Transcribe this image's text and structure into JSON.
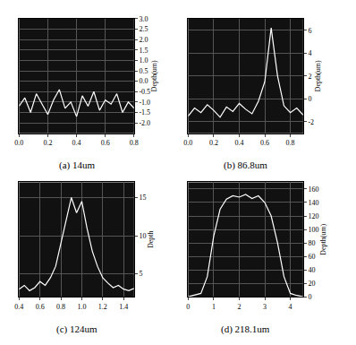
{
  "chart_data": [
    {
      "type": "line",
      "title": "(a) 14um",
      "y_label": "Depth(um)",
      "color": "#ffffff",
      "x": [
        0,
        0.04,
        0.08,
        0.12,
        0.16,
        0.2,
        0.24,
        0.28,
        0.32,
        0.36,
        0.4,
        0.44,
        0.48,
        0.52,
        0.56,
        0.6,
        0.64,
        0.68,
        0.72,
        0.76,
        0.8
      ],
      "values": [
        -1.2,
        -0.8,
        -1.5,
        -0.6,
        -1.1,
        -1.6,
        -0.9,
        -0.4,
        -1.3,
        -1.0,
        -1.7,
        -0.7,
        -1.2,
        -0.5,
        -1.4,
        -0.9,
        -1.1,
        -0.6,
        -1.5,
        -1.0,
        -1.3
      ],
      "xlim": [
        0,
        0.8
      ],
      "xticks": [
        {
          "value": 0,
          "label": "0.0"
        },
        0.2,
        0.4,
        0.6,
        0.8
      ],
      "ylim": [
        -2.5,
        3.0
      ],
      "yticks": [
        {
          "value": 3,
          "label": "3.0"
        },
        2.5,
        {
          "value": 2,
          "label": "2.0"
        },
        1.5,
        {
          "value": 1,
          "label": "1.0"
        },
        0.5,
        {
          "value": 0,
          "label": "0.0"
        },
        -0.5,
        {
          "value": -1,
          "label": "-1.0"
        },
        -1.5,
        {
          "value": -2,
          "label": "-2.0"
        }
      ]
    },
    {
      "type": "line",
      "title": "(b) 86.8um",
      "y_label": "Depth(um)",
      "color": "#ffffff",
      "x": [
        0,
        0.05,
        0.1,
        0.15,
        0.2,
        0.25,
        0.3,
        0.35,
        0.4,
        0.45,
        0.5,
        0.55,
        0.6,
        0.65,
        0.7,
        0.75,
        0.8,
        0.85,
        0.9
      ],
      "values": [
        -1.5,
        -0.8,
        -1.2,
        -0.5,
        -1.0,
        -1.6,
        -0.7,
        -1.1,
        -0.4,
        -0.9,
        -1.3,
        -0.2,
        1.5,
        6.2,
        2.0,
        -0.6,
        -1.2,
        -0.8,
        -1.4
      ],
      "xlim": [
        0,
        0.9
      ],
      "xticks": [
        {
          "value": 0,
          "label": "0.0"
        },
        0.2,
        0.4,
        0.6,
        0.8
      ],
      "ylim": [
        -3,
        7
      ],
      "yticks": [
        -2,
        0,
        2,
        4,
        6
      ]
    },
    {
      "type": "line",
      "title": "(c) 124um",
      "y_label": "Depth",
      "color": "#ffffff",
      "x": [
        0.4,
        0.45,
        0.5,
        0.55,
        0.6,
        0.65,
        0.7,
        0.75,
        0.8,
        0.85,
        0.9,
        0.95,
        1.0,
        1.05,
        1.1,
        1.15,
        1.2,
        1.25,
        1.3,
        1.35,
        1.4,
        1.45,
        1.5
      ],
      "values": [
        3,
        3.5,
        2.8,
        3.2,
        4,
        3.5,
        4.5,
        6,
        9,
        12,
        15,
        13,
        14.5,
        11,
        8,
        6,
        4.5,
        3.8,
        3.2,
        3.5,
        3,
        2.8,
        3.1
      ],
      "xlim": [
        0.4,
        1.5
      ],
      "xticks": [
        0.4,
        0.6,
        0.8,
        {
          "value": 1,
          "label": "1.0"
        },
        1.2,
        1.4
      ],
      "ylim": [
        2,
        17
      ],
      "yticks": [
        5,
        10,
        15
      ]
    },
    {
      "type": "line",
      "title": "(d) 218.1um",
      "y_label": "Depth(um)",
      "color": "#ffffff",
      "x": [
        0,
        0.25,
        0.5,
        0.75,
        1,
        1.25,
        1.5,
        1.75,
        2,
        2.25,
        2.5,
        2.75,
        3,
        3.25,
        3.5,
        3.75,
        4,
        4.25,
        4.5
      ],
      "values": [
        0,
        2,
        5,
        30,
        90,
        130,
        145,
        150,
        148,
        152,
        146,
        150,
        140,
        120,
        80,
        30,
        5,
        2,
        0
      ],
      "xlim": [
        0,
        4.5
      ],
      "xticks": [
        0,
        1,
        2,
        3,
        4
      ],
      "ylim": [
        0,
        170
      ],
      "yticks": [
        0,
        20,
        40,
        60,
        80,
        100,
        120,
        140,
        160
      ]
    }
  ]
}
